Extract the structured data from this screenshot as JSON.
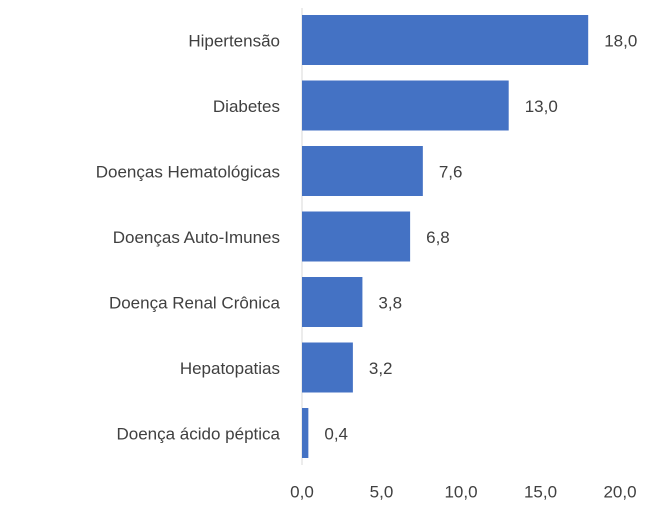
{
  "chart_data": {
    "type": "barh",
    "categories": [
      "Hipertensão",
      "Diabetes",
      "Doenças Hematológicas",
      "Doenças Auto-Imunes",
      "Doença Renal Crônica",
      "Hepatopatias",
      "Doença ácido péptica"
    ],
    "values": [
      18.0,
      13.0,
      7.6,
      6.8,
      3.8,
      3.2,
      0.4
    ],
    "value_labels": [
      "18,0",
      "13,0",
      "7,6",
      "6,8",
      "3,8",
      "3,2",
      "0,4"
    ],
    "color": "#4472c4",
    "xlim": [
      0,
      20
    ],
    "xticks": [
      {
        "value": 0,
        "label": "0,0"
      },
      {
        "value": 5,
        "label": "5,0"
      },
      {
        "value": 10,
        "label": "10,0"
      },
      {
        "value": 15,
        "label": "15,0"
      },
      {
        "value": 20,
        "label": "20,0"
      }
    ],
    "grid": false
  }
}
